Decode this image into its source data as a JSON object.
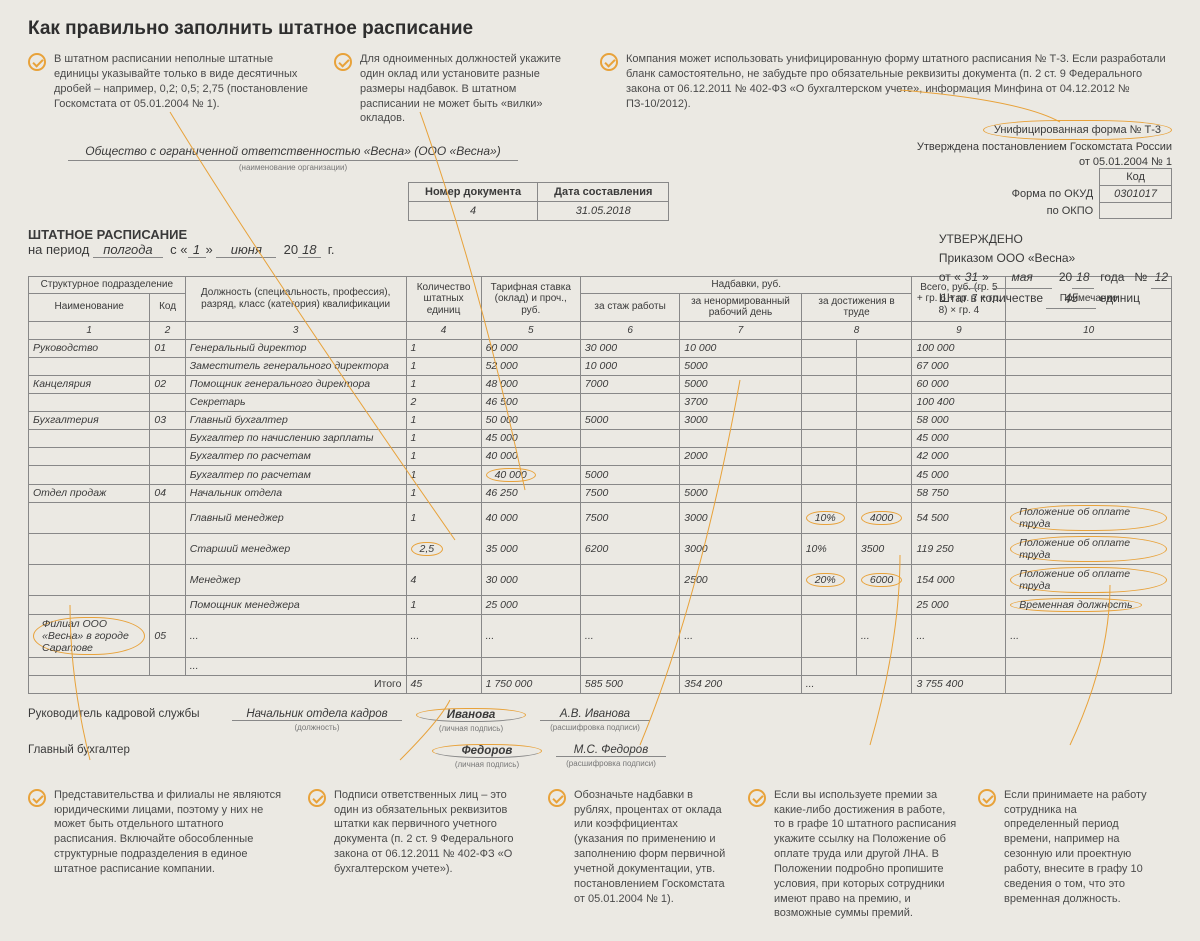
{
  "title": "Как правильно заполнить штатное расписание",
  "colors": {
    "accent": "#e8a23a",
    "bg": "#ebe9e3",
    "text": "#3a3a3a",
    "border": "#888888"
  },
  "tips_top": [
    "В штатном расписании неполные штатные единицы указывайте только в виде десятичных дробей – например, 0,2; 0,5; 2,75 (постановление Госкомстата от 05.01.2004 № 1).",
    "Для одноименных должностей укажите один оклад или установите разные размеры надбавок. В штатном расписании не может быть «вилки» окладов.",
    "Компания может использовать унифицированную форму штатного расписания № Т-3. Если разработали бланк самостоятельно, не забудьте про обязательные реквизиты документа (п. 2 ст. 9 Федерального закона от 06.12.2011 № 402-ФЗ «О бухгалтерском учете», информация Минфина от 04.12.2012 № ПЗ-10/2012)."
  ],
  "org_name": "Общество с ограниченной ответственностью «Весна» (ООО «Весна»)",
  "org_caption": "(наименование организации)",
  "form_badge": {
    "line1": "Унифицированная форма № Т-3",
    "line2": "Утверждена постановлением Госкомстата России",
    "line3": "от 05.01.2004 № 1"
  },
  "codes": {
    "kod_label": "Код",
    "okud_label": "Форма по ОКУД",
    "okud": "0301017",
    "okpo_label": "по ОКПО",
    "okpo": ""
  },
  "doc_meta": {
    "num_label": "Номер документа",
    "date_label": "Дата составления",
    "num": "4",
    "date": "31.05.2018"
  },
  "title_block": {
    "heading": "ШТАТНОЕ РАСПИСАНИЕ",
    "period_prefix": "на период",
    "period": "полгода",
    "from": "с",
    "day": "1",
    "month": "июня",
    "year_prefix": "20",
    "year": "18",
    "year_suffix": "г."
  },
  "approve": {
    "h": "УТВЕРЖДЕНО",
    "by": "Приказом ООО «Весна»",
    "from": "от",
    "day": "31",
    "month": "мая",
    "year_prefix": "20",
    "year": "18",
    "year_word": "года",
    "num_label": "№",
    "num": "12",
    "staff_prefix": "Штат в количестве",
    "staff": "45",
    "staff_suffix": "единиц"
  },
  "columns": {
    "c1_group": "Структурное подразделение",
    "c1": "Наименование",
    "c2": "Код",
    "c3": "Должность (специальность, профессия), разряд, класс (категория) квалификации",
    "c4": "Количество штатных единиц",
    "c5": "Тарифная ставка (оклад) и проч., руб.",
    "c_nadb": "Надбавки, руб.",
    "c6": "за стаж работы",
    "c7": "за ненормированный рабочий день",
    "c8": "за достижения в труде",
    "c9": "Всего, руб. (гр. 5 + гр. 6 + гр. 7 + гр. 8) × гр. 4",
    "c10": "Примечание",
    "nums": [
      "1",
      "2",
      "3",
      "4",
      "5",
      "6",
      "7",
      "8",
      "9",
      "10"
    ]
  },
  "rows": [
    {
      "dep": "Руководство",
      "code": "01",
      "job": "Генеральный директор",
      "qty": "1",
      "rate": "60 000",
      "a": "30 000",
      "b": "10 000",
      "c1": "",
      "c2": "",
      "total": "100 000",
      "note": ""
    },
    {
      "dep": "",
      "code": "",
      "job": "Заместитель генерального директора",
      "qty": "1",
      "rate": "52 000",
      "a": "10 000",
      "b": "5000",
      "c1": "",
      "c2": "",
      "total": "67 000",
      "note": ""
    },
    {
      "dep": "Канцелярия",
      "code": "02",
      "job": "Помощник генерального директора",
      "qty": "1",
      "rate": "48 000",
      "a": "7000",
      "b": "5000",
      "c1": "",
      "c2": "",
      "total": "60 000",
      "note": ""
    },
    {
      "dep": "",
      "code": "",
      "job": "Секретарь",
      "qty": "2",
      "rate": "46 500",
      "a": "",
      "b": "3700",
      "c1": "",
      "c2": "",
      "total": "100 400",
      "note": ""
    },
    {
      "dep": "Бухгалтерия",
      "code": "03",
      "job": "Главный бухгалтер",
      "qty": "1",
      "rate": "50 000",
      "a": "5000",
      "b": "3000",
      "c1": "",
      "c2": "",
      "total": "58 000",
      "note": ""
    },
    {
      "dep": "",
      "code": "",
      "job": "Бухгалтер по начислению зарплаты",
      "qty": "1",
      "rate": "45 000",
      "a": "",
      "b": "",
      "c1": "",
      "c2": "",
      "total": "45 000",
      "note": ""
    },
    {
      "dep": "",
      "code": "",
      "job": "Бухгалтер по расчетам",
      "qty": "1",
      "rate": "40 000",
      "a": "",
      "b": "2000",
      "c1": "",
      "c2": "",
      "total": "42 000",
      "note": ""
    },
    {
      "dep": "",
      "code": "",
      "job": "Бухгалтер по расчетам",
      "qty": "1",
      "rate": "40 000",
      "a": "5000",
      "b": "",
      "c1": "",
      "c2": "",
      "total": "45 000",
      "note": "",
      "oval_rate": true
    },
    {
      "dep": "Отдел продаж",
      "code": "04",
      "job": "Начальник отдела",
      "qty": "1",
      "rate": "46 250",
      "a": "7500",
      "b": "5000",
      "c1": "",
      "c2": "",
      "total": "58 750",
      "note": ""
    },
    {
      "dep": "",
      "code": "",
      "job": "Главный менеджер",
      "qty": "1",
      "rate": "40 000",
      "a": "7500",
      "b": "3000",
      "c1": "10%",
      "c2": "4000",
      "total": "54 500",
      "note": "Положение об оплате труда",
      "oval_c": true,
      "oval_note": true
    },
    {
      "dep": "",
      "code": "",
      "job": "Старший менеджер",
      "qty": "2,5",
      "rate": "35 000",
      "a": "6200",
      "b": "3000",
      "c1": "10%",
      "c2": "3500",
      "total": "119 250",
      "note": "Положение об оплате труда",
      "oval_qty": true,
      "oval_note": true
    },
    {
      "dep": "",
      "code": "",
      "job": "Менеджер",
      "qty": "4",
      "rate": "30 000",
      "a": "",
      "b": "2500",
      "c1": "20%",
      "c2": "6000",
      "total": "154 000",
      "note": "Положение об оплате труда",
      "oval_c": true,
      "oval_note": true
    },
    {
      "dep": "",
      "code": "",
      "job": "Помощник менеджера",
      "qty": "1",
      "rate": "25 000",
      "a": "",
      "b": "",
      "c1": "",
      "c2": "",
      "total": "25 000",
      "note": "Временная должность",
      "oval_note": true
    },
    {
      "dep": "Филиал ООО «Весна» в городе Саратове",
      "code": "05",
      "job": "...",
      "qty": "...",
      "rate": "...",
      "a": "...",
      "b": "...",
      "c1": "",
      "c2": "...",
      "total": "...",
      "note": "...",
      "oval_dep": true
    },
    {
      "dep": "",
      "code": "",
      "job": "...",
      "qty": "",
      "rate": "",
      "a": "",
      "b": "",
      "c1": "",
      "c2": "",
      "total": "",
      "note": ""
    }
  ],
  "itogo": {
    "label": "Итого",
    "qty": "45",
    "rate": "1 750 000",
    "a": "585 500",
    "b": "354 200",
    "c": "...",
    "total": "3 755 400"
  },
  "signatures": {
    "hr_label": "Руководитель кадровой службы",
    "hr_post": "Начальник отдела кадров",
    "hr_post_cap": "(должность)",
    "hr_sign": "Иванова",
    "sign_cap": "(личная подпись)",
    "hr_name": "А.В. Иванова",
    "name_cap": "(расшифровка подписи)",
    "acc_label": "Главный бухгалтер",
    "acc_sign": "Федоров",
    "acc_name": "М.С. Федоров"
  },
  "tips_bottom": [
    "Представительства и филиалы не являются юридическими лицами, поэтому у них не может быть отдельного штатного расписания. Включайте обособленные структурные подразделения в единое штатное расписание компании.",
    "Подписи ответственных лиц – это один из обязательных реквизитов штатки как первичного учетного документа (п. 2 ст. 9 Федерального закона от 06.12.2011 № 402-ФЗ «О бухгалтерском учете»).",
    "Обозначьте надбавки в рублях, процентах от оклада или коэффициентах (указания по применению и заполнению форм первичной учетной документации, утв. постановлением Госкомстата от 05.01.2004 № 1).",
    "Если вы используете премии за какие-либо достижения в работе, то в графе 10 штатного расписания укажите ссылку на Положение об оплате труда или другой ЛНА. В Положении подробно пропишите условия, при которых сотрудники имеют право на премию, и возможные суммы премий.",
    "Если принимаете на работу сотрудника на определенный период времени, например на сезонную или проектную работу, внесите в графу 10 сведения о том, что это временная должность."
  ]
}
